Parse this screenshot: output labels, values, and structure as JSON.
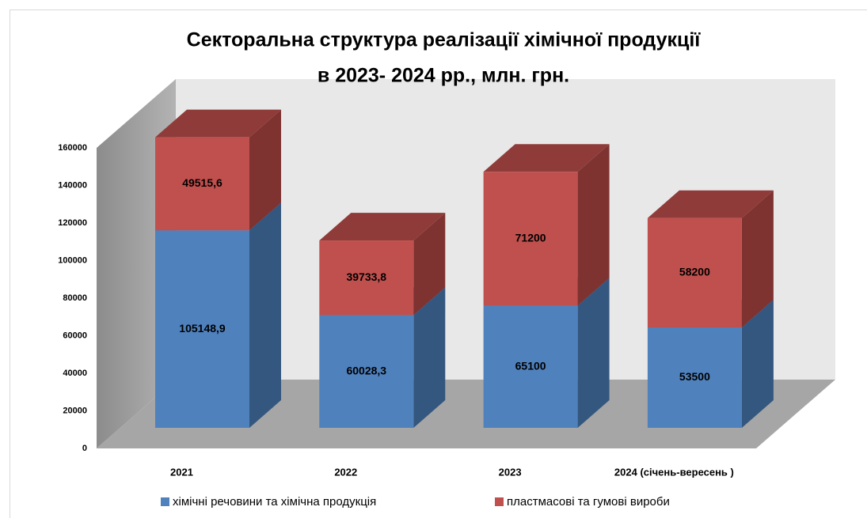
{
  "chart_data": {
    "type": "bar3d_stacked",
    "title": [
      "Секторальна структура реалізації хімічної  продукції",
      "в 2023- 2024 рр., млн. грн."
    ],
    "categories": [
      "2021",
      "2022",
      "2023",
      "2024 (січень-вересень )"
    ],
    "series": [
      {
        "name": "хімічні речовини та хімічна продукція",
        "color": "#4f81bd",
        "side_color": "#34577f",
        "top_color": "#3e6697",
        "values": [
          105148.9,
          60028.3,
          65100,
          53500
        ],
        "value_labels": [
          "105148,9",
          "60028,3",
          "65100",
          "53500"
        ]
      },
      {
        "name": "пластмасові та гумові вироби",
        "color": "#c0504d",
        "side_color": "#7e3331",
        "top_color": "#8f3b39",
        "values": [
          49515.6,
          39733.8,
          71200,
          58200
        ],
        "value_labels": [
          "49515,6",
          "39733,8",
          "71200",
          "58200"
        ]
      }
    ],
    "ylim": [
      0,
      160000
    ],
    "yticks": [
      0,
      20000,
      40000,
      60000,
      80000,
      100000,
      120000,
      140000,
      160000
    ],
    "grid": false,
    "legend": "bottom"
  }
}
